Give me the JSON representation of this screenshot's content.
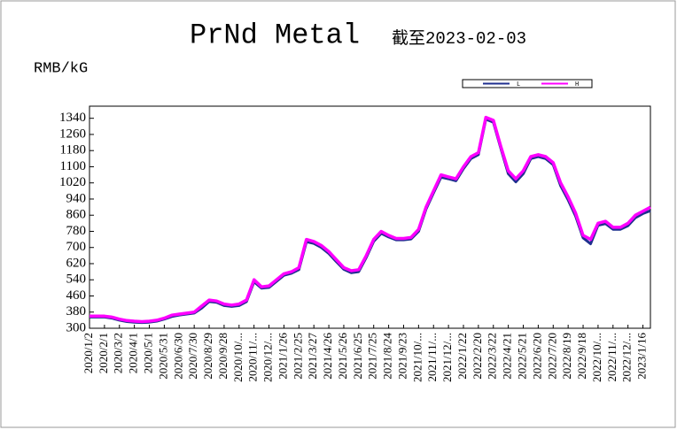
{
  "chart_data": {
    "type": "line",
    "title": "PrNd Metal",
    "subtitle": "截至2023-02-03",
    "y_label": "RMB/kG",
    "categories": [
      "2020/1/2",
      null,
      "2020/2/1",
      null,
      "2020/3/2",
      null,
      "2020/4/1",
      null,
      "2020/5/1",
      null,
      "2020/5/31",
      null,
      "2020/6/30",
      null,
      "2020/7/30",
      null,
      "2020/8/29",
      null,
      "2020/9/28",
      null,
      "2020/10/...",
      null,
      "2020/11/...",
      null,
      "2020/12/...",
      null,
      "2021/1/26",
      null,
      "2021/2/25",
      null,
      "2021/3/27",
      null,
      "2021/4/26",
      null,
      "2021/5/26",
      null,
      "2021/6/25",
      null,
      "2021/7/25",
      null,
      "2021/8/24",
      null,
      "2021/9/23",
      null,
      "2021/10/...",
      null,
      "2021/11/...",
      null,
      "2021/12/...",
      null,
      "2022/1/22",
      null,
      "2022/2/20",
      null,
      "2022/3/22",
      null,
      "2022/4/21",
      null,
      "2022/5/21",
      null,
      "2022/6/20",
      null,
      "2022/7/20",
      null,
      "2022/8/19",
      null,
      "2022/9/18",
      null,
      "2022/10/...",
      null,
      "2022/11/...",
      null,
      "2022/12/...",
      null,
      "2023/1/16",
      null
    ],
    "series": [
      {
        "name": "L",
        "color": "#1f2f8f",
        "values": [
          355,
          355,
          355,
          350,
          340,
          333,
          330,
          328,
          330,
          335,
          345,
          358,
          365,
          370,
          375,
          400,
          432,
          428,
          412,
          408,
          412,
          432,
          530,
          498,
          502,
          532,
          562,
          572,
          590,
          728,
          720,
          700,
          670,
          630,
          592,
          575,
          580,
          650,
          730,
          770,
          752,
          738,
          738,
          742,
          780,
          890,
          970,
          1048,
          1040,
          1030,
          1090,
          1140,
          1160,
          1335,
          1320,
          1190,
          1065,
          1025,
          1065,
          1140,
          1150,
          1140,
          1110,
          1005,
          935,
          855,
          748,
          718,
          810,
          818,
          790,
          790,
          808,
          848,
          868,
          882
        ]
      },
      {
        "name": "H",
        "color": "#ff00ff",
        "values": [
          360,
          360,
          360,
          355,
          345,
          338,
          335,
          333,
          335,
          340,
          350,
          365,
          370,
          375,
          380,
          410,
          440,
          435,
          420,
          415,
          420,
          440,
          540,
          505,
          510,
          540,
          570,
          580,
          600,
          740,
          730,
          710,
          680,
          640,
          600,
          585,
          590,
          660,
          740,
          780,
          760,
          745,
          745,
          750,
          790,
          900,
          980,
          1060,
          1050,
          1040,
          1100,
          1150,
          1170,
          1345,
          1330,
          1200,
          1080,
          1040,
          1080,
          1150,
          1160,
          1150,
          1120,
          1020,
          950,
          870,
          760,
          740,
          820,
          830,
          800,
          800,
          820,
          860,
          880,
          900
        ]
      }
    ],
    "ylim": [
      300,
      1400
    ],
    "yticks": [
      300,
      380,
      460,
      540,
      620,
      700,
      780,
      860,
      940,
      1020,
      1100,
      1180,
      1260,
      1340
    ],
    "grid": false,
    "legend": "top-right"
  }
}
